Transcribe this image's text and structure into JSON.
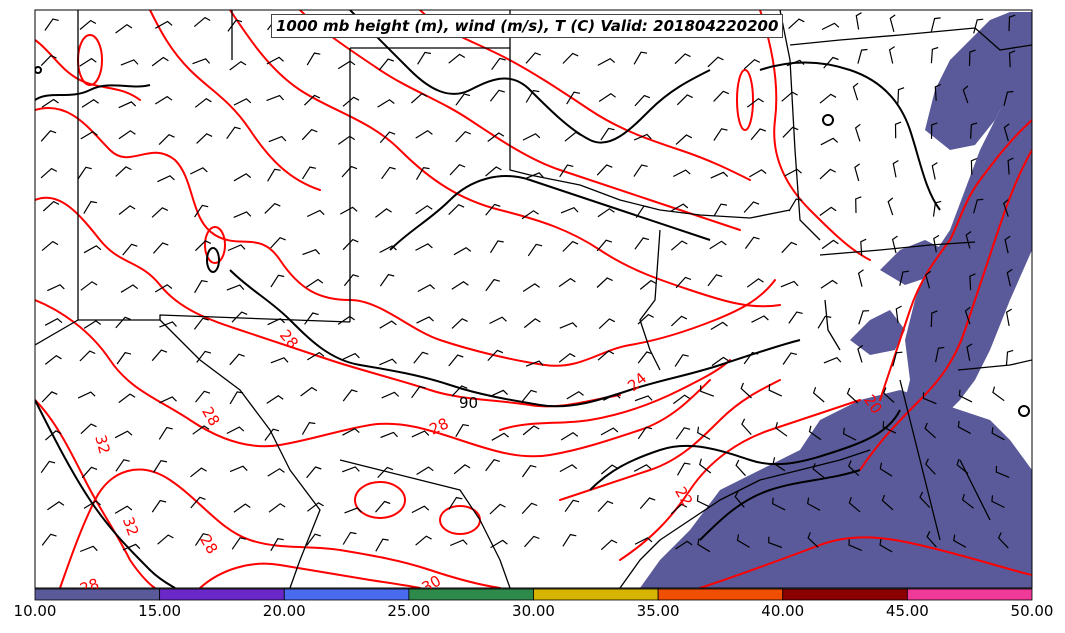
{
  "title": "1000 mb height (m), wind (m/s), T (C) Valid: 201804220200",
  "colorbar": {
    "ticks": [
      "10.00",
      "15.00",
      "20.00",
      "25.00",
      "30.00",
      "35.00",
      "40.00",
      "45.00",
      "50.00"
    ],
    "colors": [
      "#5a5a9a",
      "#6a28c8",
      "#4a6af0",
      "#2e8a4a",
      "#d6b400",
      "#f04e00",
      "#8a0000",
      "#f03a9a"
    ]
  },
  "contour_labels": {
    "height": [
      "90"
    ],
    "temperature": [
      "28",
      "28",
      "28",
      "32",
      "32",
      "28",
      "28",
      "30",
      "24",
      "22",
      "20"
    ]
  },
  "colors": {
    "temperature_contour": "#ff0000",
    "height_contour": "#000000",
    "shading": "#5a5a9a",
    "boundaries": "#000000"
  }
}
